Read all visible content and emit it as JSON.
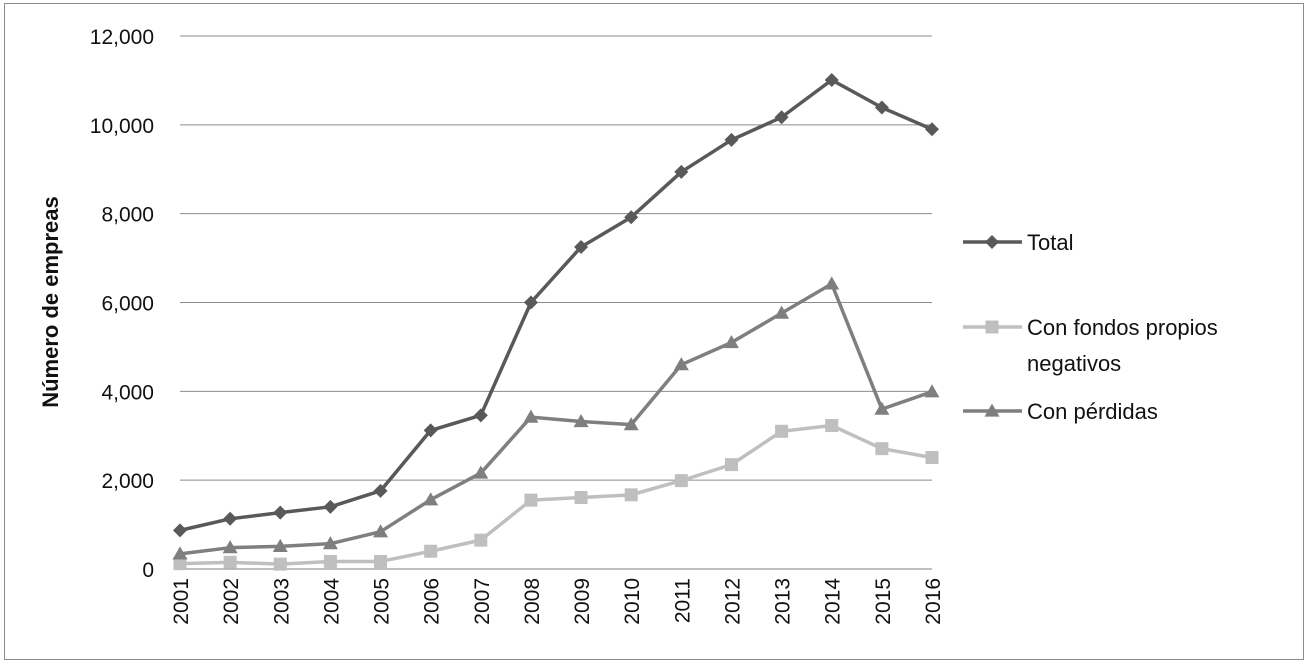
{
  "chart_data": {
    "type": "line",
    "title": "",
    "xlabel": "",
    "ylabel": "Número de empreas",
    "ylim": [
      0,
      12000
    ],
    "yticks": [
      0,
      2000,
      4000,
      6000,
      8000,
      10000,
      12000
    ],
    "ytick_labels": [
      "0",
      "2,000",
      "4,000",
      "6,000",
      "8,000",
      "10,000",
      "12,000"
    ],
    "grid": "horizontal",
    "legend_position": "right",
    "categories": [
      "2001",
      "2002",
      "2003",
      "2004",
      "2005",
      "2006",
      "2007",
      "2008",
      "2009",
      "2010",
      "2011",
      "2012",
      "2013",
      "2014",
      "2015",
      "2016"
    ],
    "series": [
      {
        "name": "Total",
        "marker": "diamond",
        "color": "#595959",
        "values": [
          870,
          1130,
          1270,
          1400,
          1760,
          3120,
          3460,
          6000,
          7250,
          7920,
          8940,
          9660,
          10170,
          11010,
          10390,
          9900
        ]
      },
      {
        "name": "Con fondos propios negativos",
        "legend_lines": [
          "Con fondos propios",
          "negativos"
        ],
        "marker": "square",
        "color": "#bfbfbf",
        "values": [
          120,
          150,
          110,
          170,
          170,
          400,
          650,
          1550,
          1610,
          1670,
          1990,
          2350,
          3100,
          3230,
          2710,
          2510
        ]
      },
      {
        "name": "Con pérdidas",
        "marker": "triangle",
        "color": "#7f7f7f",
        "values": [
          340,
          480,
          510,
          570,
          840,
          1560,
          2160,
          3420,
          3320,
          3250,
          4600,
          5100,
          5760,
          6420,
          3600,
          3990
        ]
      }
    ]
  }
}
